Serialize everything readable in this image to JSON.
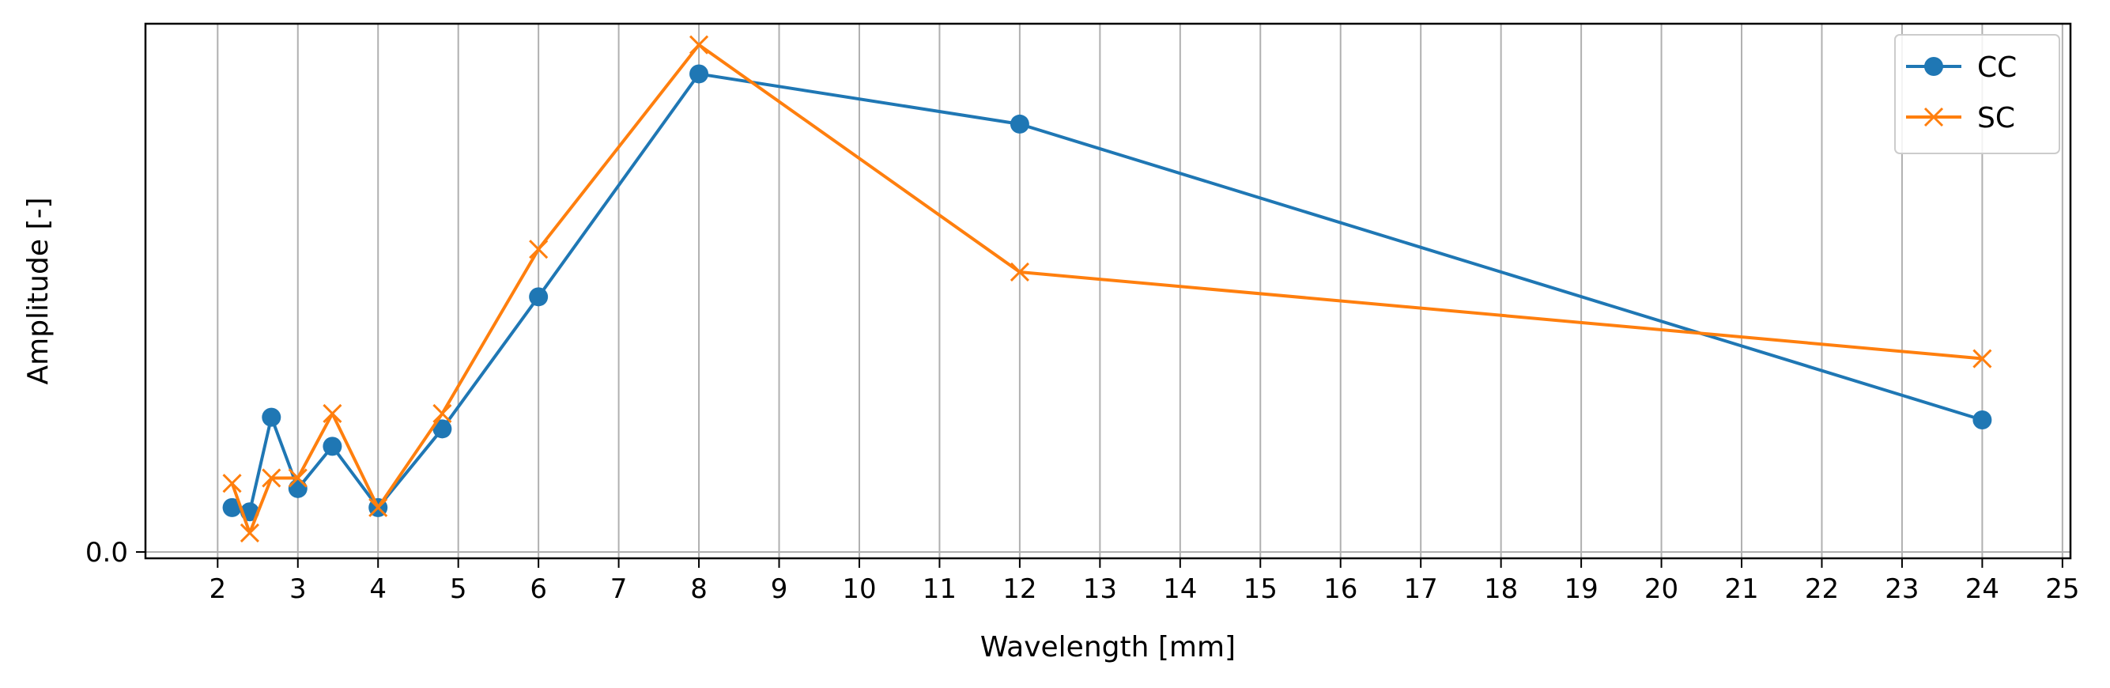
{
  "chart_data": {
    "type": "line",
    "xlabel": "Wavelength [mm]",
    "ylabel": "Amplitude [-]",
    "xlim": [
      1.1,
      25.1
    ],
    "ylim": [
      -0.012,
      1.0
    ],
    "xticks": [
      2,
      3,
      4,
      5,
      6,
      7,
      8,
      9,
      10,
      11,
      12,
      13,
      14,
      15,
      16,
      17,
      18,
      19,
      20,
      21,
      22,
      23,
      24,
      25
    ],
    "yticks": [
      0.0
    ],
    "ytick_labels": [
      "0.0"
    ],
    "grid": "vertical",
    "legend_position": "top-right",
    "series": [
      {
        "name": "CC",
        "color": "#1f77b4",
        "marker": "circle",
        "x": [
          2.18,
          2.4,
          2.67,
          3.0,
          3.43,
          4.0,
          4.8,
          6.0,
          8.0,
          12.0,
          24.0
        ],
        "y": [
          0.084,
          0.076,
          0.255,
          0.12,
          0.2,
          0.084,
          0.233,
          0.483,
          0.905,
          0.81,
          0.25
        ]
      },
      {
        "name": "SC",
        "color": "#ff7f0e",
        "marker": "x",
        "x": [
          2.18,
          2.4,
          2.67,
          3.0,
          3.43,
          4.0,
          4.8,
          6.0,
          8.0,
          12.0,
          24.0
        ],
        "y": [
          0.13,
          0.036,
          0.14,
          0.14,
          0.262,
          0.084,
          0.262,
          0.573,
          0.96,
          0.53,
          0.366
        ]
      }
    ]
  }
}
